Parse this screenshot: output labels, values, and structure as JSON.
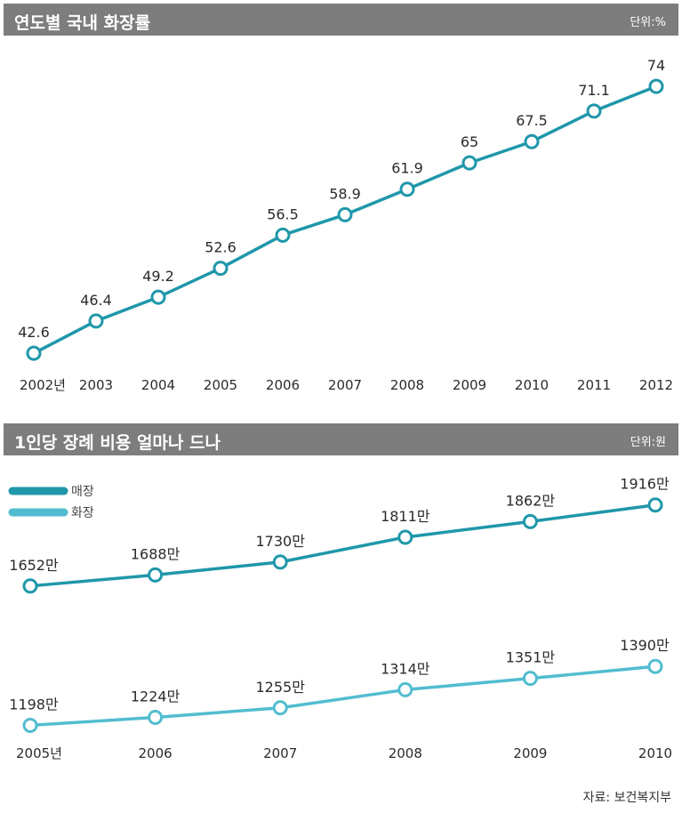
{
  "chart1": {
    "title": "연도별 국내 화장률",
    "unit": "단위:%"
  },
  "chart2": {
    "title": "1인당 장례 비용 얼마나 드나",
    "unit": "단위:원"
  },
  "source": "자료: 보건복지부",
  "colors": {
    "header_bg": "#7d7d7d",
    "line_dark": "#1f97aa",
    "line_light": "#52bdd0"
  },
  "chart_data": [
    {
      "type": "line",
      "title": "연도별 국내 화장률",
      "unit": "단위:%",
      "categories": [
        "2002년",
        "2003",
        "2004",
        "2005",
        "2006",
        "2007",
        "2008",
        "2009",
        "2010",
        "2011",
        "2012"
      ],
      "series": [
        {
          "values": [
            42.6,
            46.4,
            49.2,
            52.6,
            56.5,
            58.9,
            61.9,
            65,
            67.5,
            71.1,
            74
          ],
          "labels": [
            "42.6",
            "46.4",
            "49.2",
            "52.6",
            "56.5",
            "58.9",
            "61.9",
            "65",
            "67.5",
            "71.1",
            "74"
          ]
        }
      ],
      "ylim": [
        40,
        76
      ],
      "grid": false,
      "legend": "none"
    },
    {
      "type": "line",
      "title": "1인당 장례 비용 얼마나 드나",
      "unit": "단위:원",
      "categories": [
        "2005년",
        "2006",
        "2007",
        "2008",
        "2009",
        "2010"
      ],
      "series": [
        {
          "name": "매장",
          "values": [
            1652,
            1688,
            1730,
            1811,
            1862,
            1916
          ],
          "labels": [
            "1652만",
            "1688만",
            "1730만",
            "1811만",
            "1862만",
            "1916만"
          ]
        },
        {
          "name": "화장",
          "values": [
            1198,
            1224,
            1255,
            1314,
            1351,
            1390
          ],
          "labels": [
            "1198만",
            "1224만",
            "1255만",
            "1314만",
            "1351만",
            "1390만"
          ]
        }
      ],
      "ylim": [
        1150,
        1950
      ],
      "grid": false,
      "legend": "top-left"
    }
  ]
}
